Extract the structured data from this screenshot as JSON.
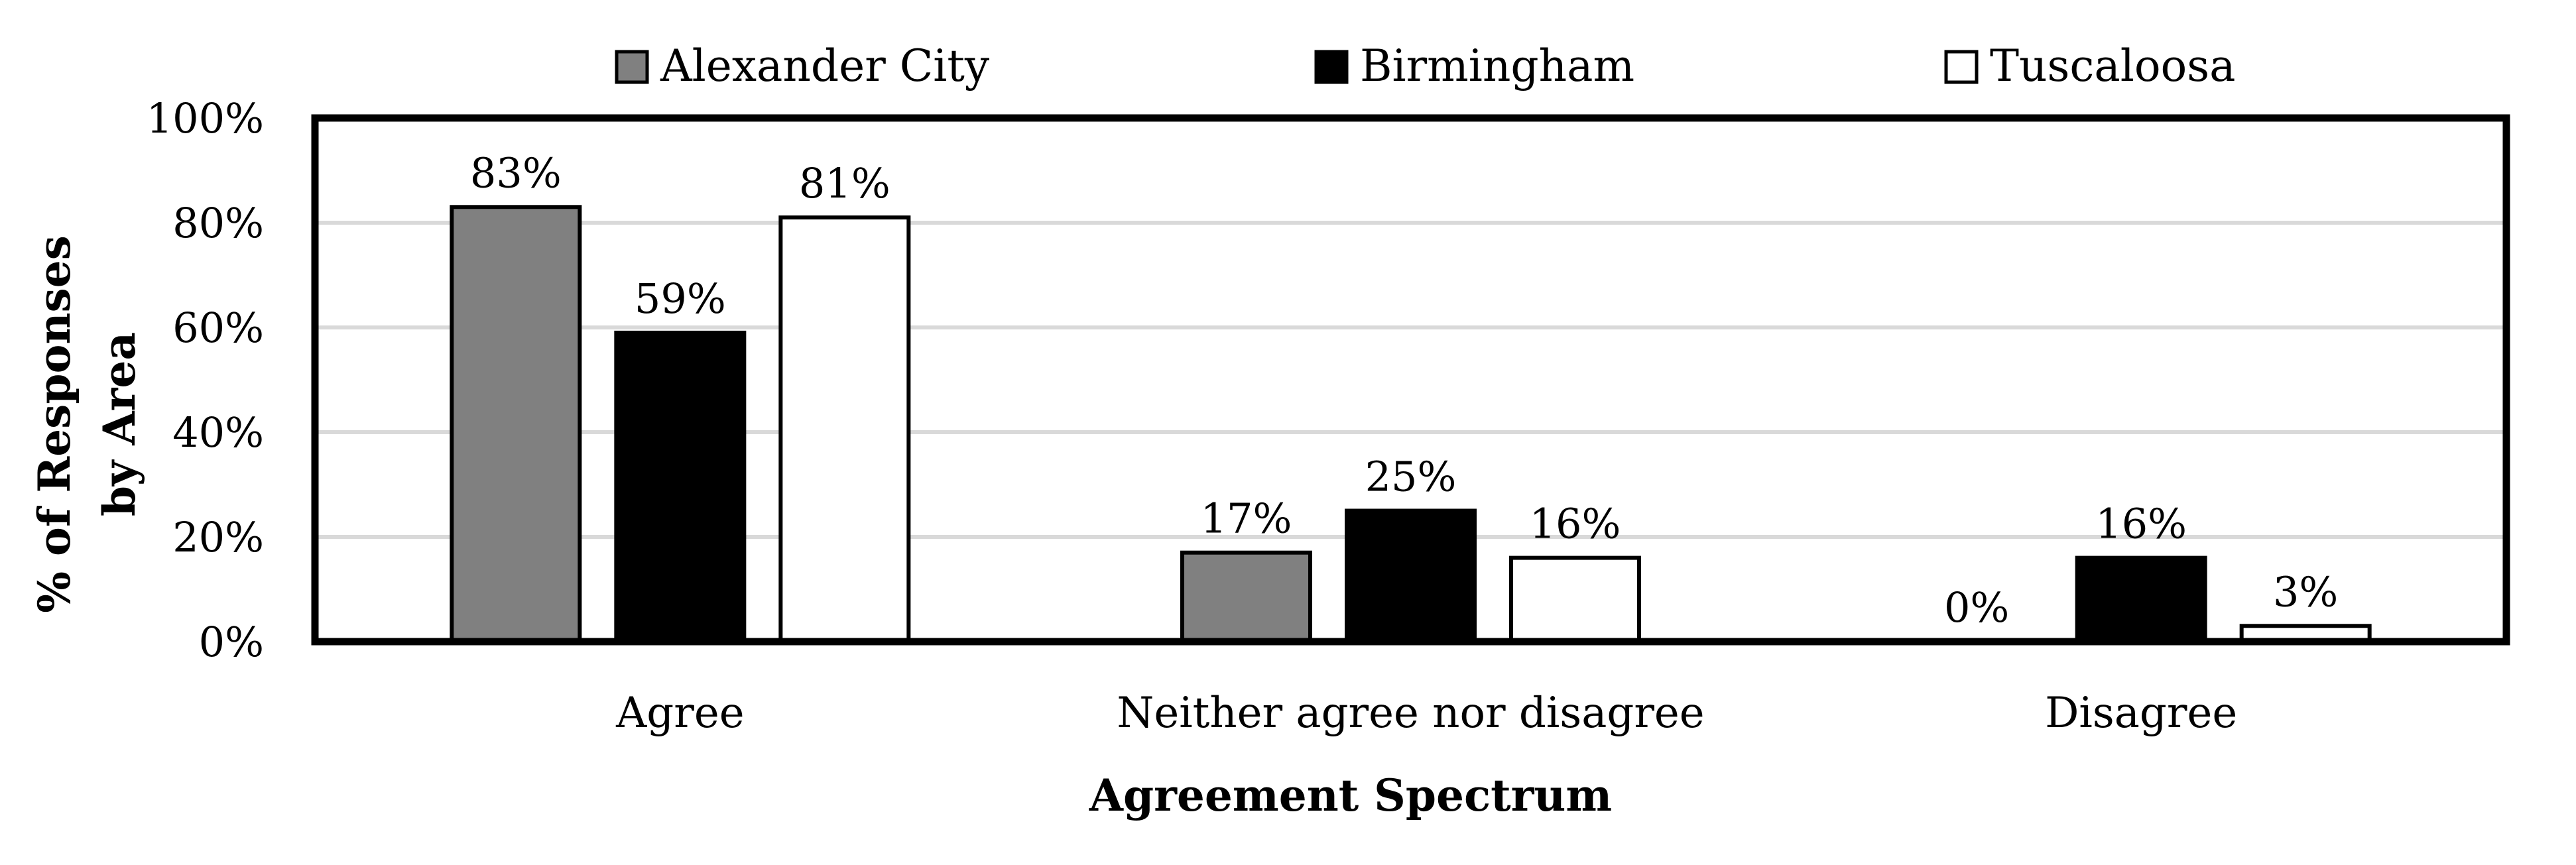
{
  "chart_data": {
    "type": "bar",
    "categories": [
      "Agree",
      "Neither agree nor disagree",
      "Disagree"
    ],
    "series": [
      {
        "name": "Alexander City",
        "color": "#808080",
        "values": [
          83,
          17,
          0
        ],
        "labels": [
          "83%",
          "17%",
          "0%"
        ]
      },
      {
        "name": "Birmingham",
        "color": "#000000",
        "values": [
          59,
          25,
          16
        ],
        "labels": [
          "59%",
          "25%",
          "16%"
        ]
      },
      {
        "name": "Tuscaloosa",
        "color": "#ffffff",
        "values": [
          81,
          16,
          3
        ],
        "labels": [
          "81%",
          "16%",
          "3%"
        ]
      }
    ],
    "xlabel": "Agreement Spectrum",
    "ylabel_lines": [
      "% of Responses",
      "by Area"
    ],
    "ylim": [
      0,
      100
    ],
    "yticks": [
      0,
      20,
      40,
      60,
      80,
      100
    ],
    "ytick_labels": [
      "0%",
      "20%",
      "40%",
      "60%",
      "80%",
      "100%"
    ],
    "grid": true,
    "legend_position": "top"
  }
}
